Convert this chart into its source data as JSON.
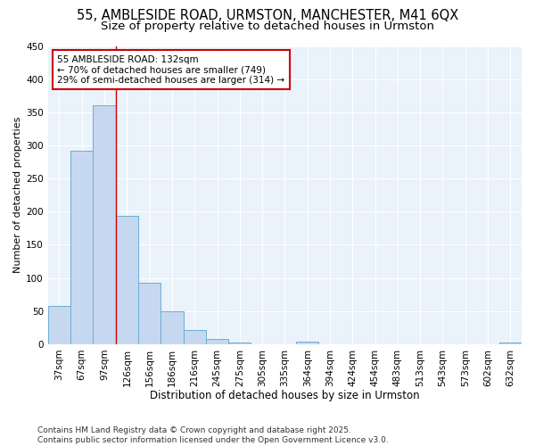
{
  "title": "55, AMBLESIDE ROAD, URMSTON, MANCHESTER, M41 6QX",
  "subtitle": "Size of property relative to detached houses in Urmston",
  "xlabel": "Distribution of detached houses by size in Urmston",
  "ylabel": "Number of detached properties",
  "categories": [
    "37sqm",
    "67sqm",
    "97sqm",
    "126sqm",
    "156sqm",
    "186sqm",
    "216sqm",
    "245sqm",
    "275sqm",
    "305sqm",
    "335sqm",
    "364sqm",
    "394sqm",
    "424sqm",
    "454sqm",
    "483sqm",
    "513sqm",
    "543sqm",
    "573sqm",
    "602sqm",
    "632sqm"
  ],
  "values": [
    58,
    292,
    360,
    194,
    93,
    49,
    21,
    8,
    3,
    0,
    0,
    4,
    0,
    0,
    0,
    0,
    0,
    0,
    0,
    0,
    3
  ],
  "bar_color": "#c5d8f0",
  "bar_edge_color": "#6baed6",
  "bg_color": "#ffffff",
  "plot_bg_color": "#eaf2fb",
  "grid_color": "#ffffff",
  "vline_x_pos": 2.5,
  "vline_color": "#cc0000",
  "annotation_title": "55 AMBLESIDE ROAD: 132sqm",
  "annotation_line1": "← 70% of detached houses are smaller (749)",
  "annotation_line2": "29% of semi-detached houses are larger (314) →",
  "annotation_box_color": "#cc0000",
  "footer_line1": "Contains HM Land Registry data © Crown copyright and database right 2025.",
  "footer_line2": "Contains public sector information licensed under the Open Government Licence v3.0.",
  "ylim": [
    0,
    450
  ],
  "yticks": [
    0,
    50,
    100,
    150,
    200,
    250,
    300,
    350,
    400,
    450
  ],
  "title_fontsize": 10.5,
  "subtitle_fontsize": 9.5,
  "xlabel_fontsize": 8.5,
  "ylabel_fontsize": 8,
  "tick_fontsize": 7.5,
  "annotation_fontsize": 7.5,
  "footer_fontsize": 6.5
}
